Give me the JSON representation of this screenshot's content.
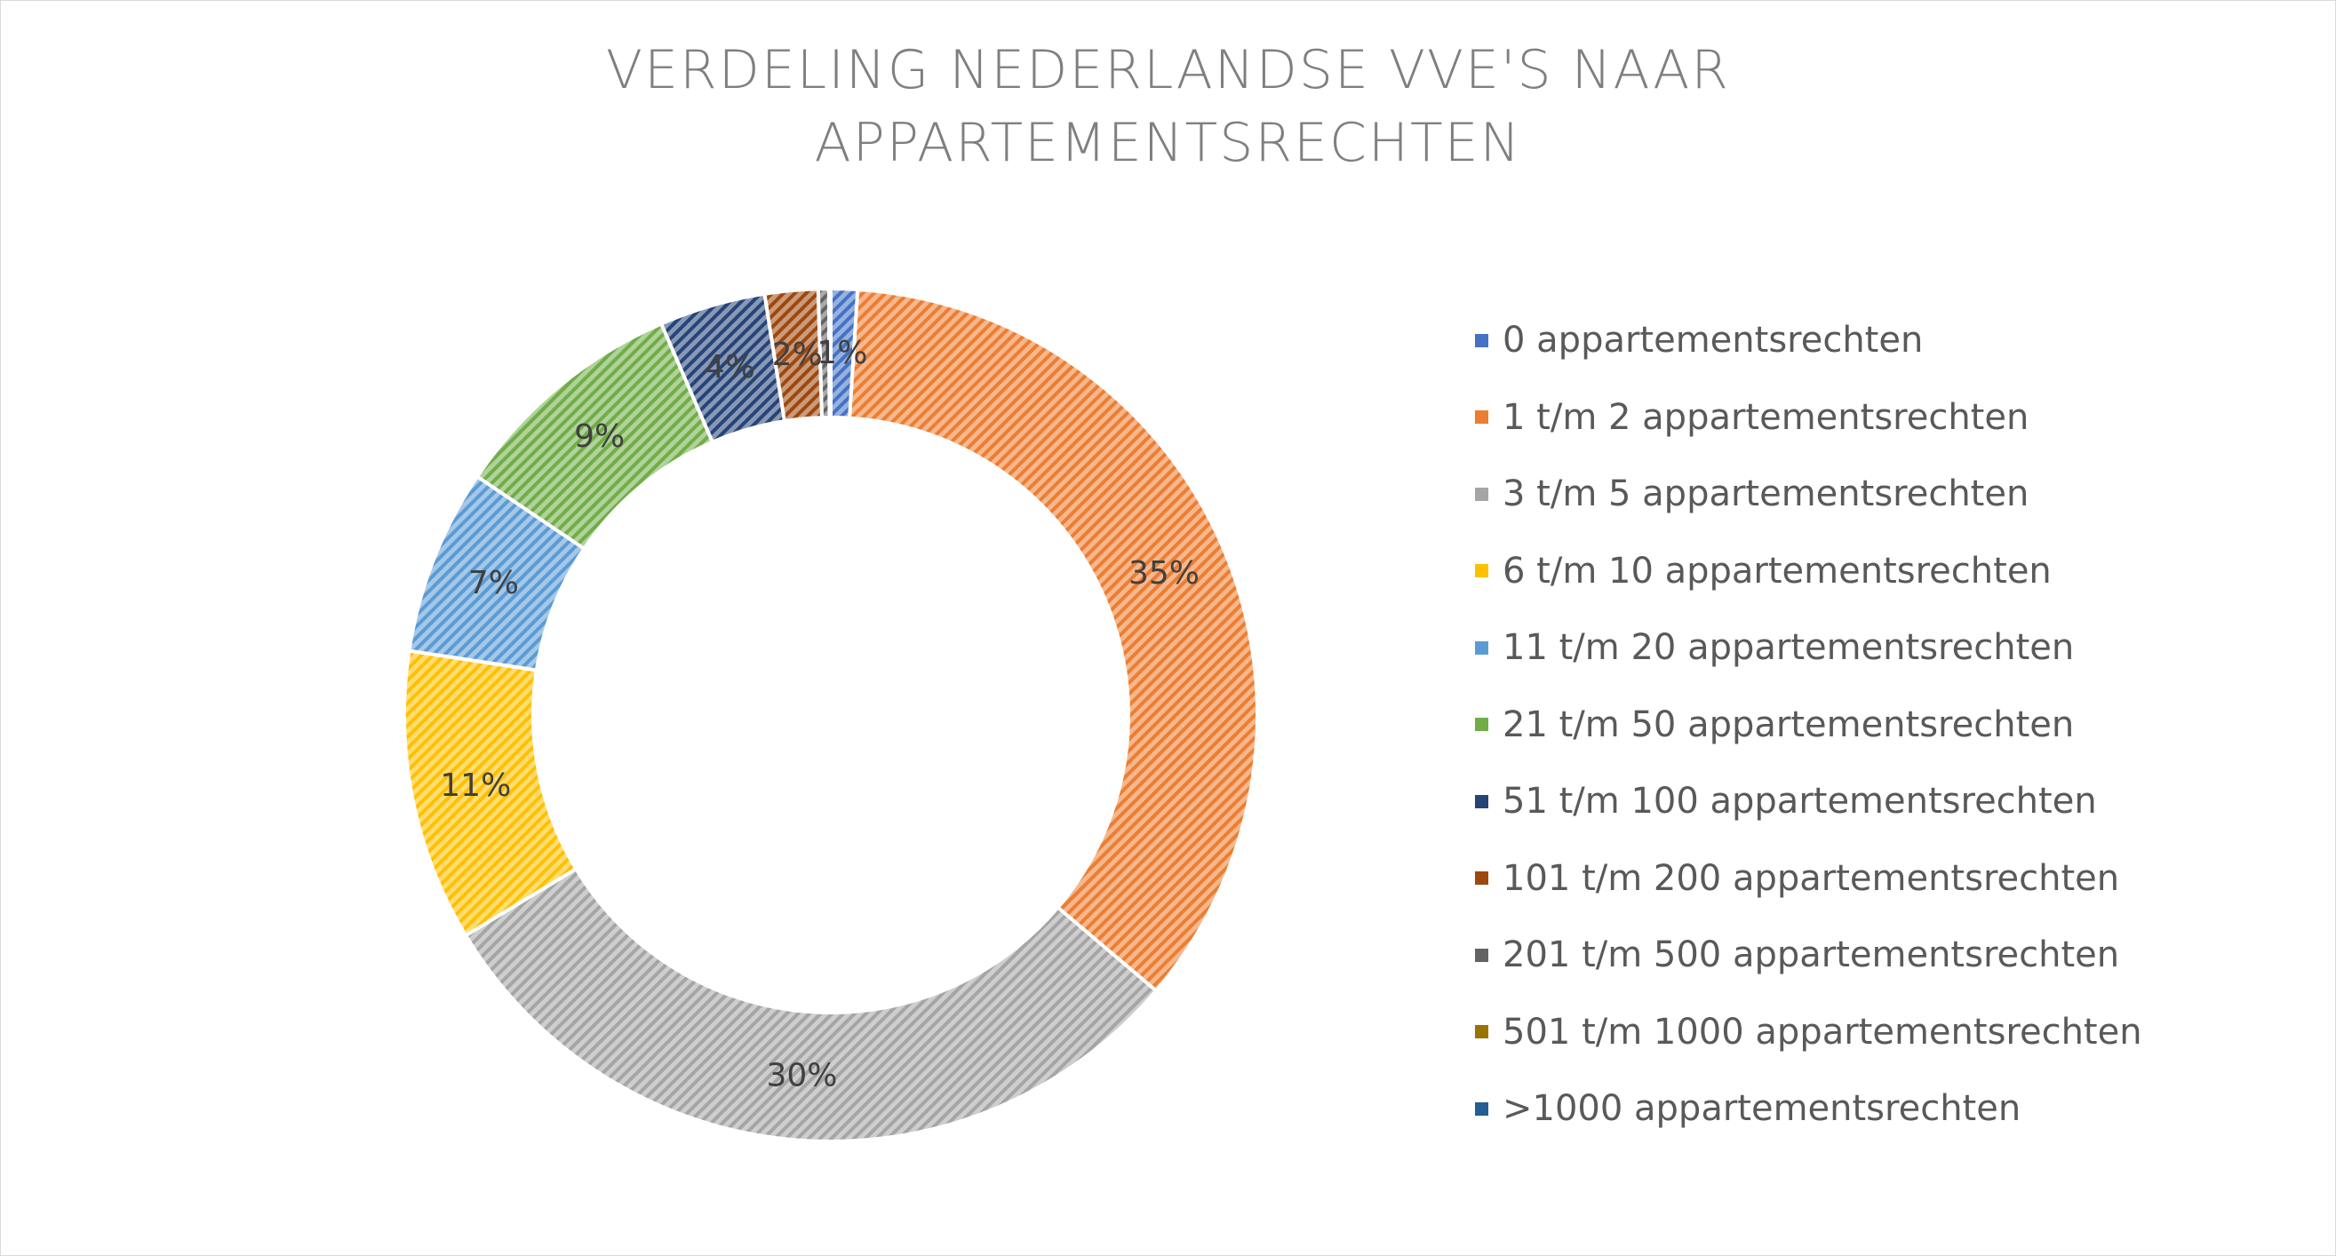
{
  "chart_data": {
    "type": "pie",
    "subtype": "doughnut",
    "title_lines": [
      "VERDELING NEDERLANDSE VVE'S NAAR",
      "APPARTEMENTSRECHTEN"
    ],
    "categories": [
      "0 appartementsrechten",
      "1 t/m 2 appartementsrechten",
      "3 t/m 5 appartementsrechten",
      "6 t/m 10 appartementsrechten",
      "11 t/m 20 appartementsrechten",
      "21 t/m 50 appartementsrechten",
      "51 t/m 100 appartementsrechten",
      "101 t/m 200 appartementsrechten",
      "201 t/m 500 appartementsrechten",
      "501 t/m 1000 appartementsrechten",
      ">1000 appartementsrechten"
    ],
    "values": [
      1,
      35,
      30,
      11,
      7,
      9,
      4,
      2,
      0.4,
      0.05,
      0.02
    ],
    "data_labels": [
      "1%",
      "35%",
      "30%",
      "11%",
      "7%",
      "9%",
      "4%",
      "2%",
      "",
      "",
      ""
    ],
    "colors": [
      "#4472c4",
      "#ed7d31",
      "#a5a5a5",
      "#ffc000",
      "#5b9bd5",
      "#70ad47",
      "#264478",
      "#9e480e",
      "#636363",
      "#997300",
      "#255e91"
    ],
    "legend_position": "right",
    "fill_pattern": "diagonal-hatch"
  }
}
